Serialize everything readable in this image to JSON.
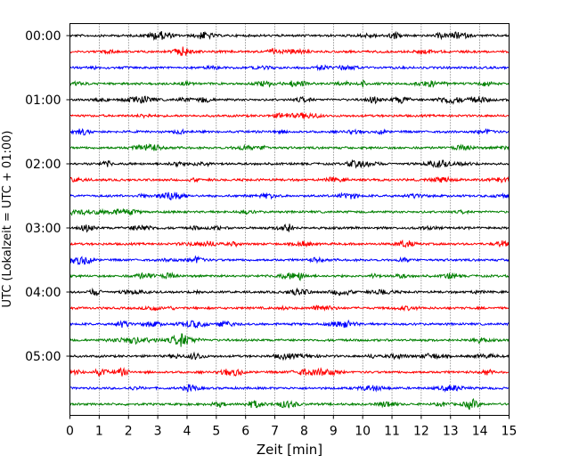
{
  "chart_data": {
    "type": "line",
    "title": "",
    "xlabel": "Zeit  [min]",
    "ylabel": "UTC (Lokalzeit = UTC + 01:00)",
    "xlim": [
      0,
      15
    ],
    "x_ticks": [
      0,
      1,
      2,
      3,
      4,
      5,
      6,
      7,
      8,
      9,
      10,
      11,
      12,
      13,
      14,
      15
    ],
    "y_ticks": [
      "00:00",
      "01:00",
      "02:00",
      "03:00",
      "04:00",
      "05:00"
    ],
    "trace_interval_minutes": 15,
    "trace_count": 24,
    "trace_colors": [
      "#000000",
      "#ff0000",
      "#0000ff",
      "#008000"
    ],
    "grid": "vertical dotted lines at each minute",
    "legend": "none",
    "series_note": "continuous seismic amplitude traces, one per 15-minute window"
  }
}
